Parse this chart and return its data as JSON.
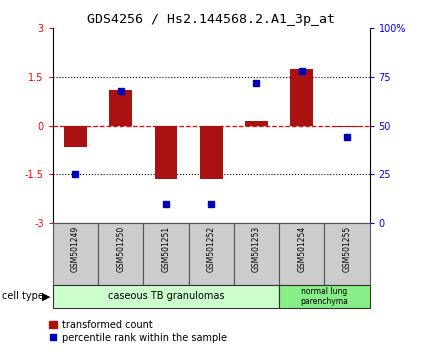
{
  "title": "GDS4256 / Hs2.144568.2.A1_3p_at",
  "samples": [
    "GSM501249",
    "GSM501250",
    "GSM501251",
    "GSM501252",
    "GSM501253",
    "GSM501254",
    "GSM501255"
  ],
  "transformed_count": [
    -0.65,
    1.1,
    -1.65,
    -1.65,
    0.15,
    1.75,
    -0.05
  ],
  "percentile_rank": [
    25,
    68,
    10,
    10,
    72,
    78,
    44
  ],
  "ylim_left": [
    -3,
    3
  ],
  "ylim_right": [
    0,
    100
  ],
  "yticks_left": [
    -3,
    -1.5,
    0,
    1.5,
    3
  ],
  "yticks_right": [
    0,
    25,
    50,
    75,
    100
  ],
  "ytick_labels_left": [
    "-3",
    "-1.5",
    "0",
    "1.5",
    "3"
  ],
  "ytick_labels_right": [
    "0",
    "25",
    "50",
    "75",
    "100%"
  ],
  "bar_color": "#aa1111",
  "dot_color": "#0000bb",
  "group1_label": "caseous TB granulomas",
  "group1_n": 5,
  "group1_color": "#ccffcc",
  "group2_label": "normal lung\nparenchyma",
  "group2_n": 2,
  "group2_color": "#88ee88",
  "cell_type_label": "cell type",
  "legend_bar_label": "transformed count",
  "legend_dot_label": "percentile rank within the sample",
  "bg_color": "#ffffff",
  "sample_box_color": "#cccccc",
  "bar_width": 0.5
}
